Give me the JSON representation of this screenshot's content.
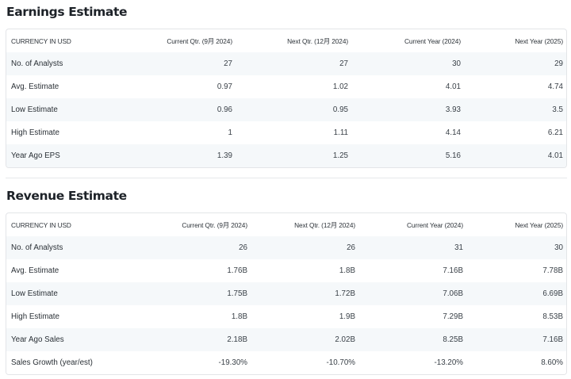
{
  "earnings": {
    "title": "Earnings Estimate",
    "headers": [
      "CURRENCY IN USD",
      "Current Qtr. (9月 2024)",
      "Next Qtr. (12月 2024)",
      "Current Year (2024)",
      "Next Year (2025)"
    ],
    "rows": [
      [
        "No. of Analysts",
        "27",
        "27",
        "30",
        "29"
      ],
      [
        "Avg. Estimate",
        "0.97",
        "1.02",
        "4.01",
        "4.74"
      ],
      [
        "Low Estimate",
        "0.96",
        "0.95",
        "3.93",
        "3.5"
      ],
      [
        "High Estimate",
        "1",
        "1.11",
        "4.14",
        "6.21"
      ],
      [
        "Year Ago EPS",
        "1.39",
        "1.25",
        "5.16",
        "4.01"
      ]
    ]
  },
  "revenue": {
    "title": "Revenue Estimate",
    "headers": [
      "CURRENCY IN USD",
      "Current Qtr. (9月 2024)",
      "Next Qtr. (12月 2024)",
      "Current Year (2024)",
      "Next Year (2025)"
    ],
    "rows": [
      [
        "No. of Analysts",
        "26",
        "26",
        "31",
        "30"
      ],
      [
        "Avg. Estimate",
        "1.76B",
        "1.8B",
        "7.16B",
        "7.78B"
      ],
      [
        "Low Estimate",
        "1.75B",
        "1.72B",
        "7.06B",
        "6.69B"
      ],
      [
        "High Estimate",
        "1.8B",
        "1.9B",
        "7.29B",
        "8.53B"
      ],
      [
        "Year Ago Sales",
        "2.18B",
        "2.02B",
        "8.25B",
        "7.16B"
      ],
      [
        "Sales Growth (year/est)",
        "-19.30%",
        "-10.70%",
        "-13.20%",
        "8.60%"
      ]
    ]
  }
}
